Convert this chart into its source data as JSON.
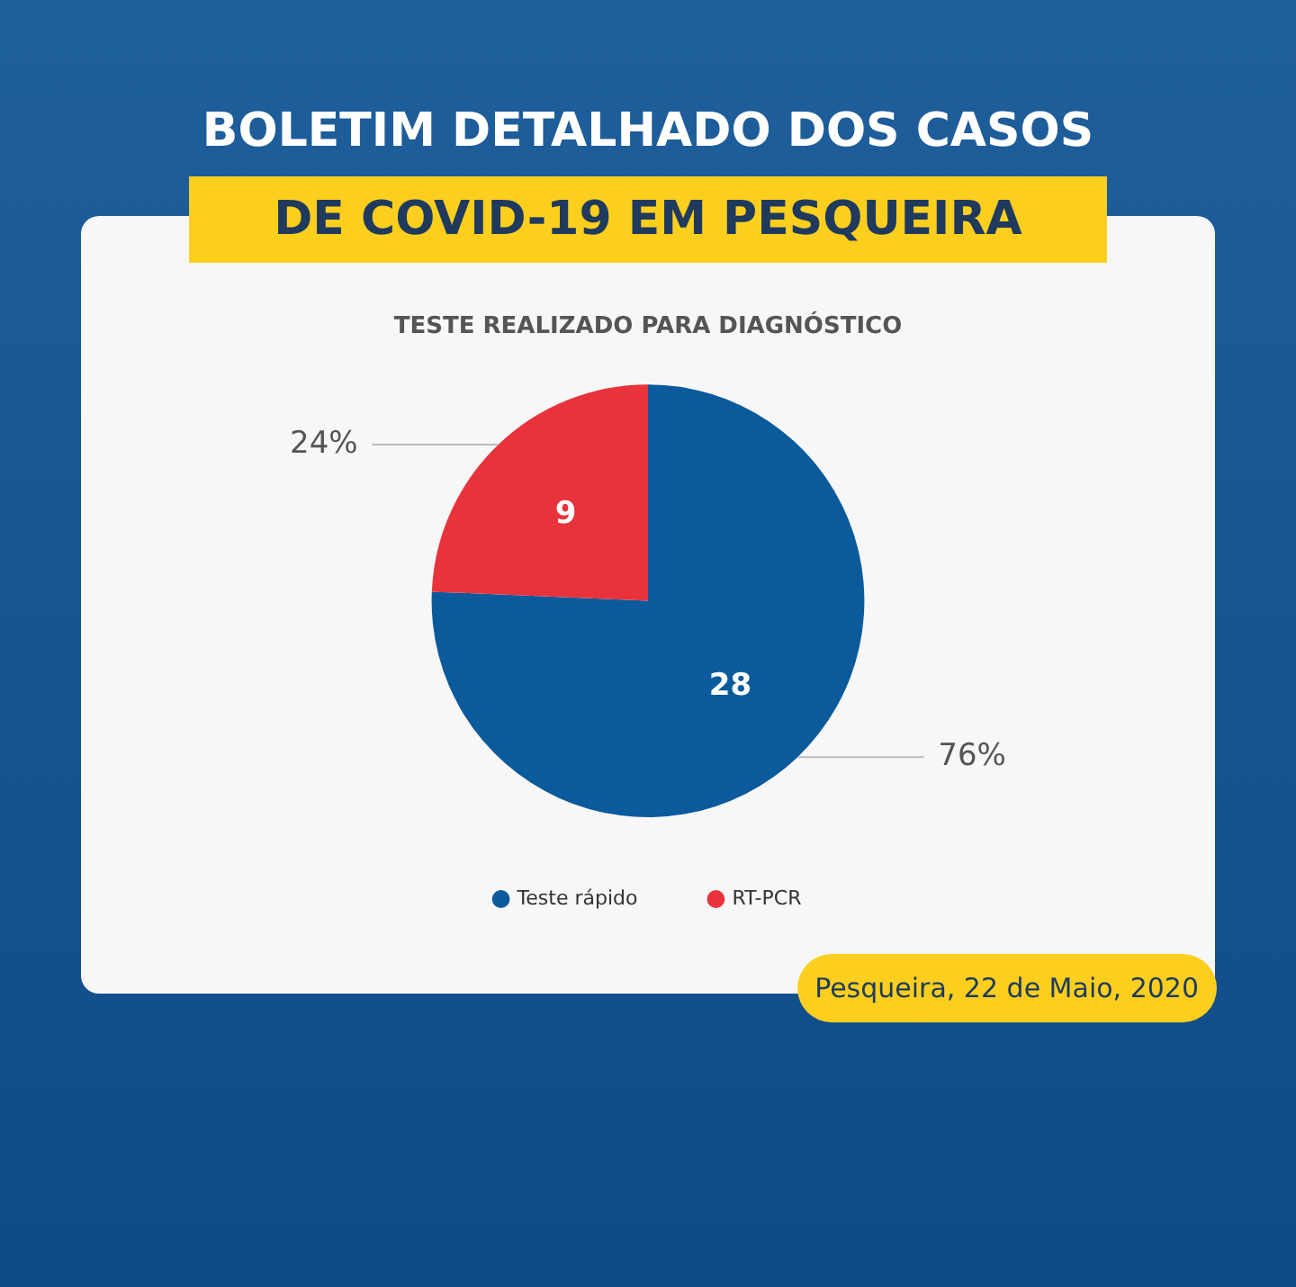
{
  "chart_data": {
    "type": "pie",
    "title": "BOLETIM DETALHADO DOS CASOS DE COVID-19 EM PESQUEIRA",
    "subtitle": "TESTE REALIZADO PARA DIAGNÓSTICO",
    "categories": [
      "Teste rápido",
      "RT-PCR"
    ],
    "values": [
      28,
      9
    ],
    "colors": [
      "#0b5a9c",
      "#e8333c"
    ],
    "data_labels": true,
    "annotations": [
      {
        "text": "76%",
        "x": "Teste rápido"
      },
      {
        "text": "24%",
        "x": "RT-PCR"
      },
      "Pesqueira, 22 de Maio, 2020"
    ],
    "legend": "bottom"
  }
}
